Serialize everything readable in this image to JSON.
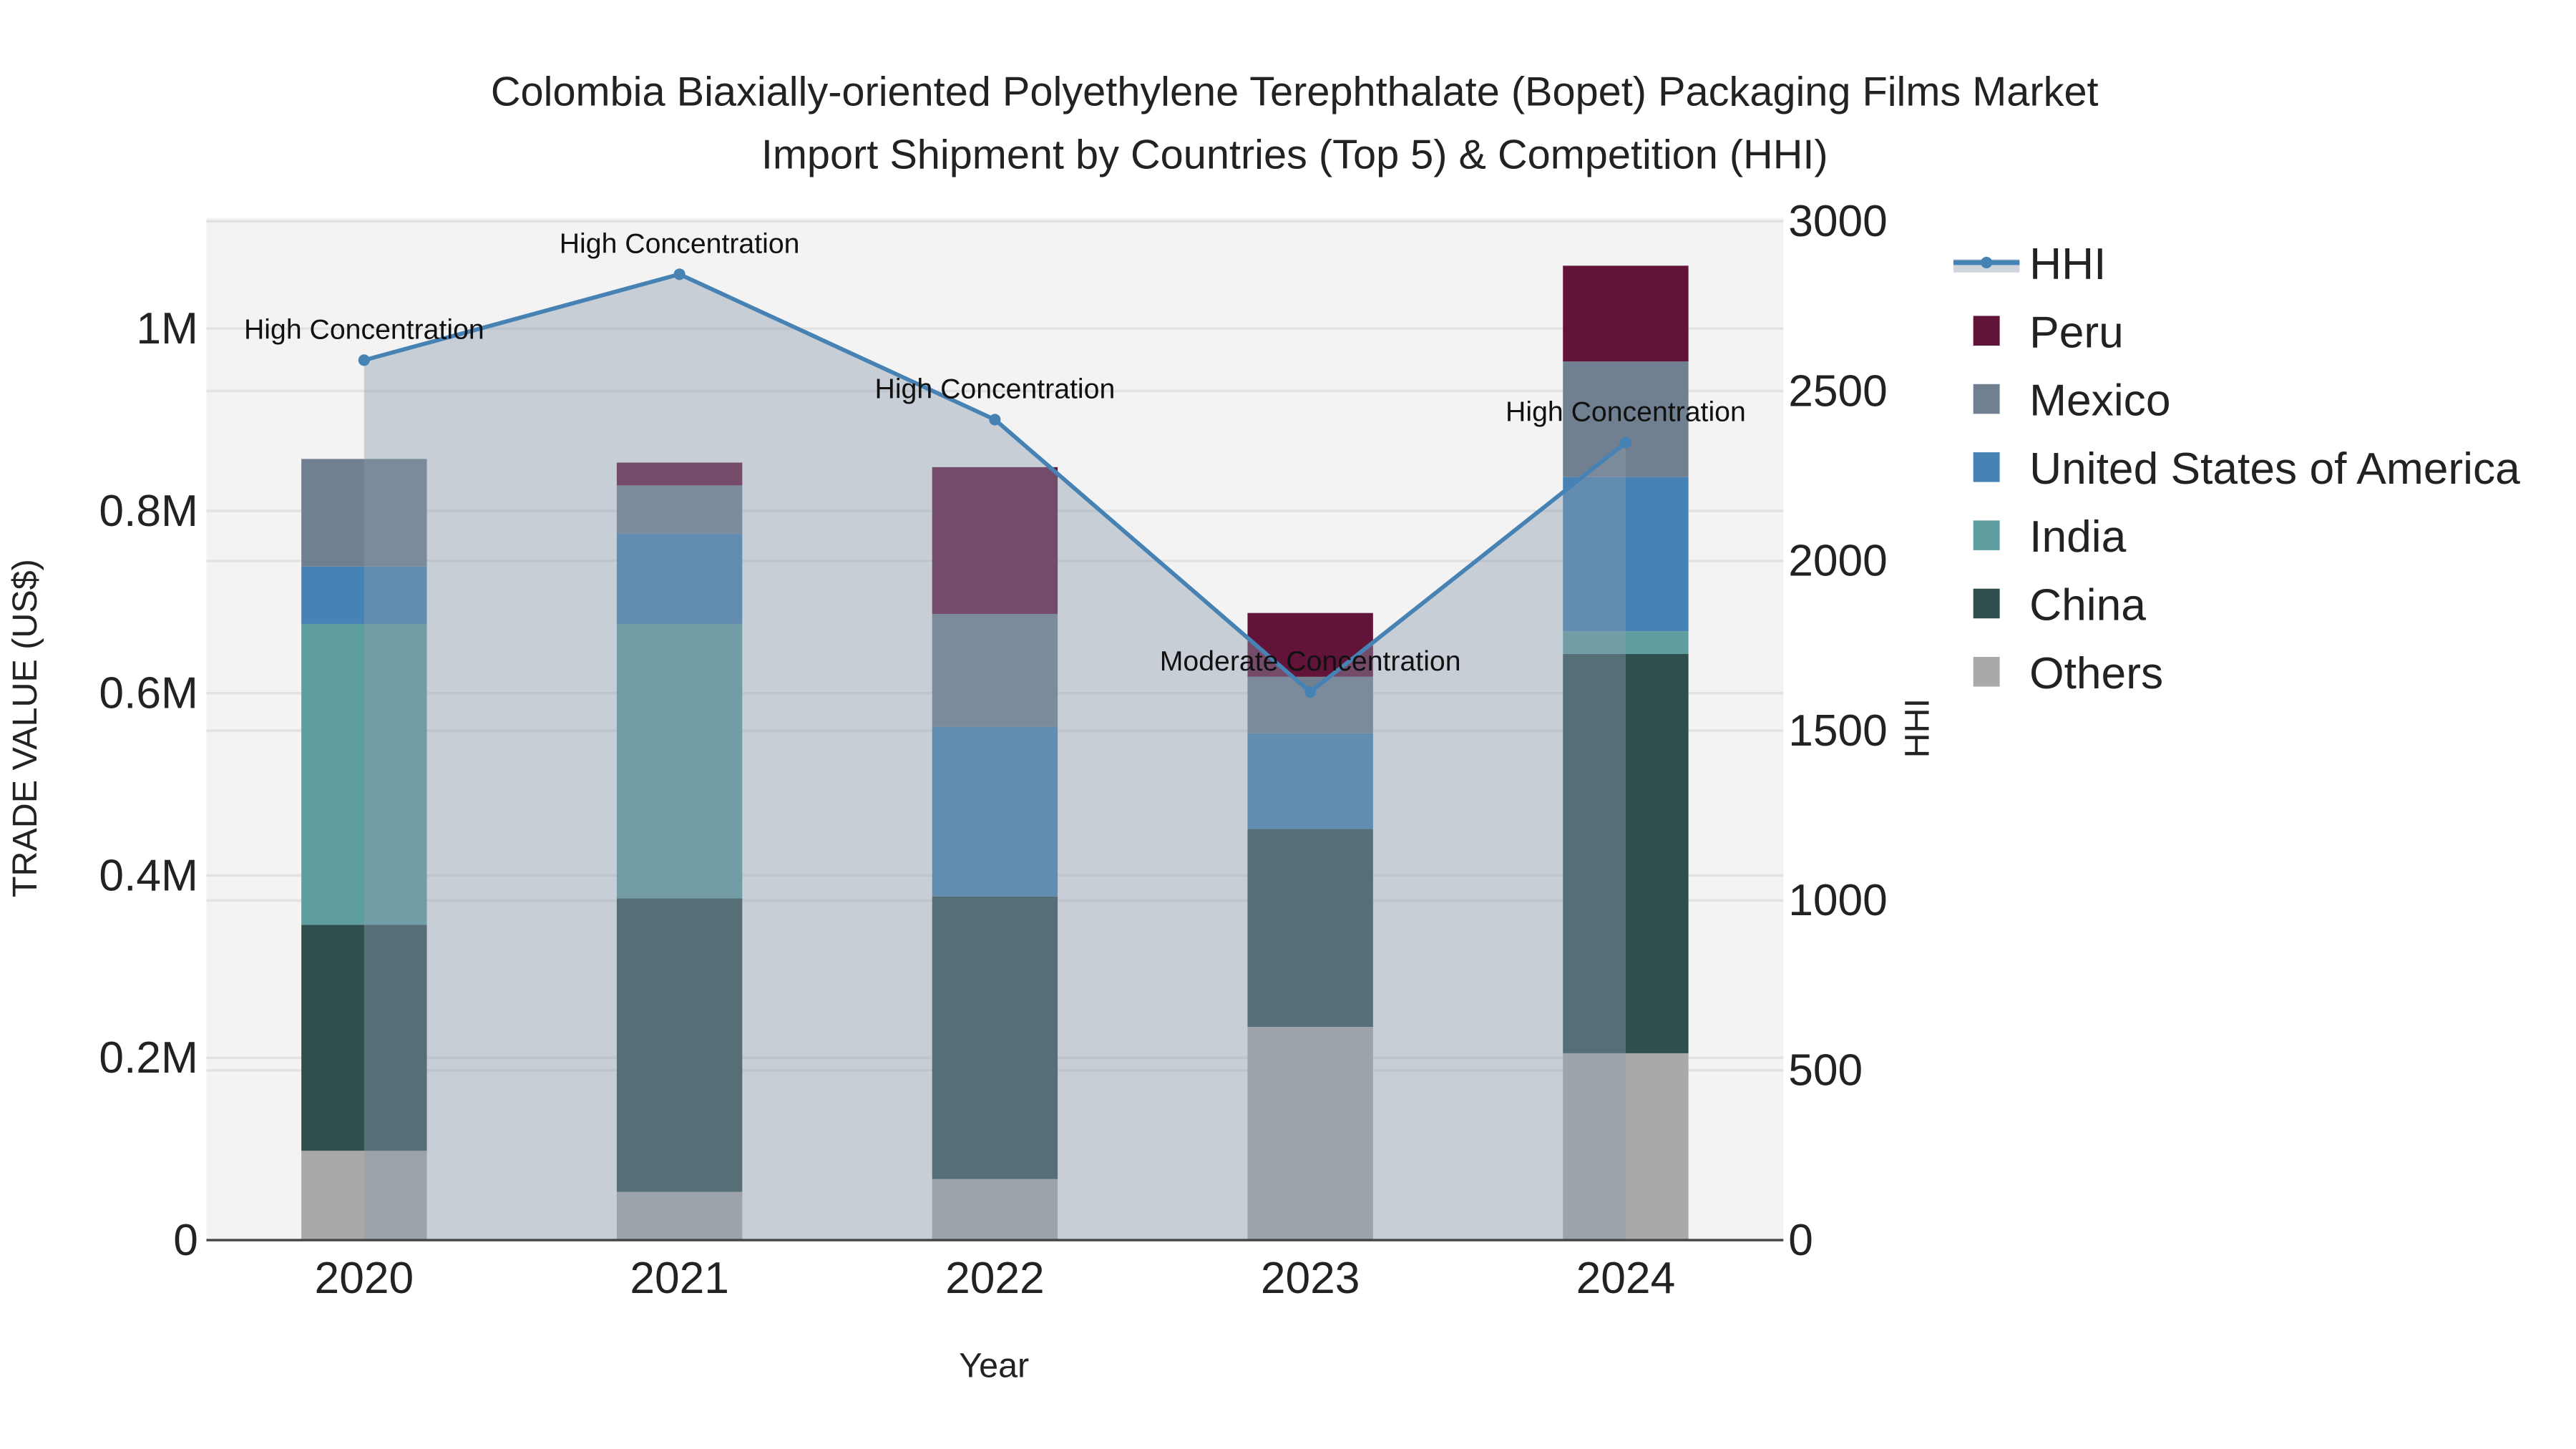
{
  "chart_data": {
    "type": "bar",
    "title_lines": [
      "Colombia Biaxially-oriented Polyethylene Terephthalate (Bopet) Packaging Films Market",
      "Import Shipment by Countries (Top 5) & Competition (HHI)"
    ],
    "xlabel": "Year",
    "ylabel": "TRADE VALUE (US$)",
    "y2label": "HHI",
    "categories": [
      "2020",
      "2021",
      "2022",
      "2023",
      "2024"
    ],
    "ylim": [
      0,
      1.12
    ],
    "y2lim": [
      0,
      3000
    ],
    "yticks": [
      {
        "v": 0,
        "label": "0"
      },
      {
        "v": 0.2,
        "label": "0.2M"
      },
      {
        "v": 0.4,
        "label": "0.4M"
      },
      {
        "v": 0.6,
        "label": "0.6M"
      },
      {
        "v": 0.8,
        "label": "0.8M"
      },
      {
        "v": 1.0,
        "label": "1M"
      }
    ],
    "y2ticks": [
      {
        "v": 0,
        "label": "0"
      },
      {
        "v": 500,
        "label": "500"
      },
      {
        "v": 1000,
        "label": "1000"
      },
      {
        "v": 1500,
        "label": "1500"
      },
      {
        "v": 2000,
        "label": "2000"
      },
      {
        "v": 2500,
        "label": "2500"
      },
      {
        "v": 3000,
        "label": "3000"
      }
    ],
    "value_unit": "millions US$",
    "series": [
      {
        "name": "Others",
        "color": "#a9a9a9",
        "values": [
          0.098,
          0.053,
          0.067,
          0.234,
          0.205
        ]
      },
      {
        "name": "China",
        "color": "#2f4f4f",
        "values": [
          0.248,
          0.322,
          0.31,
          0.217,
          0.438
        ]
      },
      {
        "name": "India",
        "color": "#5f9ea0",
        "values": [
          0.33,
          0.301,
          0.0,
          0.0,
          0.025
        ]
      },
      {
        "name": "United States of America",
        "color": "#4682b4",
        "values": [
          0.063,
          0.099,
          0.186,
          0.105,
          0.169
        ]
      },
      {
        "name": "Mexico",
        "color": "#708090",
        "values": [
          0.118,
          0.053,
          0.124,
          0.062,
          0.127
        ]
      },
      {
        "name": "Peru",
        "color": "#621438",
        "values": [
          0.0,
          0.025,
          0.161,
          0.07,
          0.105
        ]
      }
    ],
    "hhi": {
      "name": "HHI",
      "color": "#4682b4",
      "values": [
        2591,
        2844,
        2416,
        1614,
        2348
      ],
      "annotations": [
        "High Concentration",
        "High Concentration",
        "High Concentration",
        "Moderate Concentration",
        "High Concentration"
      ]
    },
    "legend_order": [
      "HHI",
      "Peru",
      "Mexico",
      "United States of America",
      "India",
      "China",
      "Others"
    ],
    "legend_position": "right",
    "grid": true
  }
}
